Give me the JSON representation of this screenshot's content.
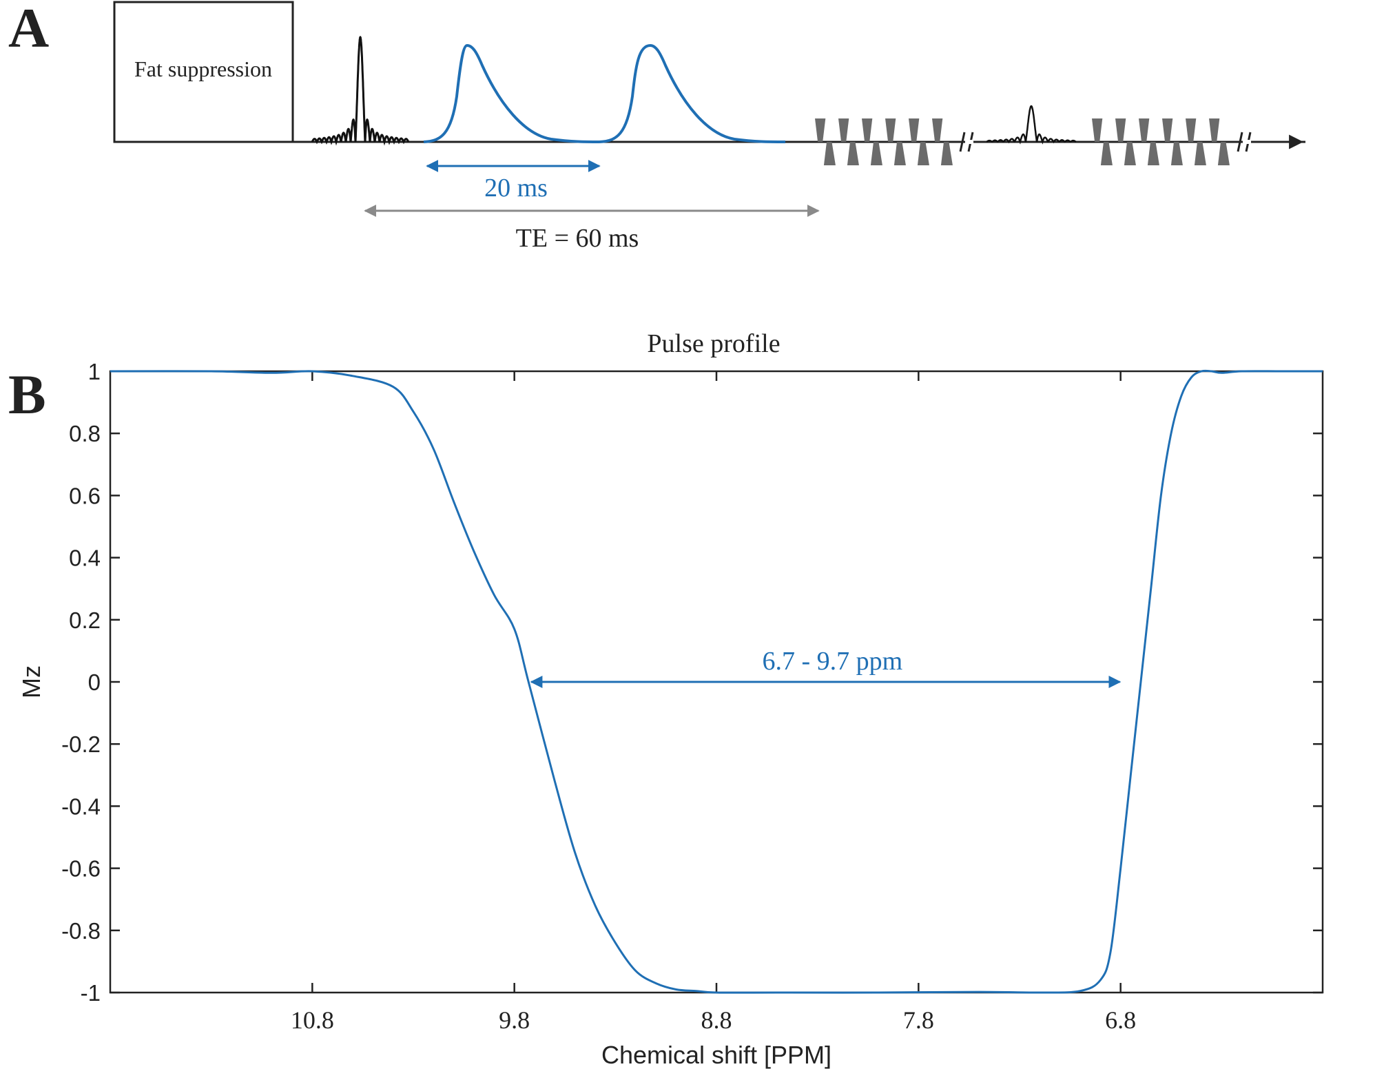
{
  "panel_a": {
    "label": "A",
    "fat_box_label": "Fat suppression",
    "short_interval_label": "20 ms",
    "te_label": "TE = 60 ms",
    "colors": {
      "pulse": "#1f6fb4",
      "interval": "#1f6fb4",
      "te": "#8a8a8a",
      "gradient": "#6b6b6b",
      "axis": "#222222"
    }
  },
  "panel_b": {
    "label": "B",
    "annotation": "6.7 - 9.7 ppm",
    "colors": {
      "curve": "#1f6fb4",
      "annotation": "#1f6fb4",
      "axis": "#222222"
    }
  },
  "chart_data": {
    "type": "line",
    "title": "Pulse profile",
    "xlabel": "Chemical shift [PPM]",
    "ylabel": "Mz",
    "x_reversed": true,
    "xlim": [
      5.8,
      11.8
    ],
    "ylim": [
      -1,
      1
    ],
    "xticks": [
      10.8,
      9.8,
      8.8,
      7.8,
      6.8
    ],
    "xtick_labels": [
      "10.8",
      "9.8",
      "8.8",
      "7.8",
      "6.8"
    ],
    "yticks": [
      1,
      0.8,
      0.6,
      0.4,
      0.2,
      0,
      -0.2,
      -0.4,
      -0.6,
      -0.8,
      -1
    ],
    "ytick_labels": [
      "1",
      "0.8",
      "0.6",
      "0.4",
      "0.2",
      "0",
      "-0.2",
      "-0.4",
      "-0.6",
      "-0.8",
      "-1"
    ],
    "series": [
      {
        "name": "Mz",
        "x": [
          11.8,
          11.3,
          11.0,
          10.8,
          10.6,
          10.4,
          10.3,
          10.2,
          10.1,
          10.0,
          9.9,
          9.8,
          9.73,
          9.6,
          9.5,
          9.4,
          9.3,
          9.2,
          9.1,
          9.0,
          8.9,
          8.8,
          8.5,
          8.0,
          7.5,
          7.2,
          7.0,
          6.9,
          6.85,
          6.8,
          6.75,
          6.7,
          6.65,
          6.6,
          6.55,
          6.5,
          6.45,
          6.4,
          6.35,
          6.3,
          6.2,
          6.0,
          5.8
        ],
        "y": [
          1.0,
          1.0,
          0.995,
          1.0,
          0.985,
          0.95,
          0.87,
          0.75,
          0.58,
          0.42,
          0.28,
          0.17,
          0.0,
          -0.32,
          -0.55,
          -0.72,
          -0.84,
          -0.93,
          -0.97,
          -0.99,
          -0.995,
          -1.0,
          -1.0,
          -1.0,
          -0.998,
          -1.0,
          -0.995,
          -0.96,
          -0.87,
          -0.6,
          -0.3,
          0.0,
          0.3,
          0.6,
          0.8,
          0.92,
          0.98,
          1.0,
          1.0,
          0.995,
          1.0,
          1.0,
          1.0
        ]
      }
    ],
    "arrow": {
      "from": 9.73,
      "to": 6.79,
      "y": 0.0,
      "label": "6.7 - 9.7 ppm"
    }
  }
}
